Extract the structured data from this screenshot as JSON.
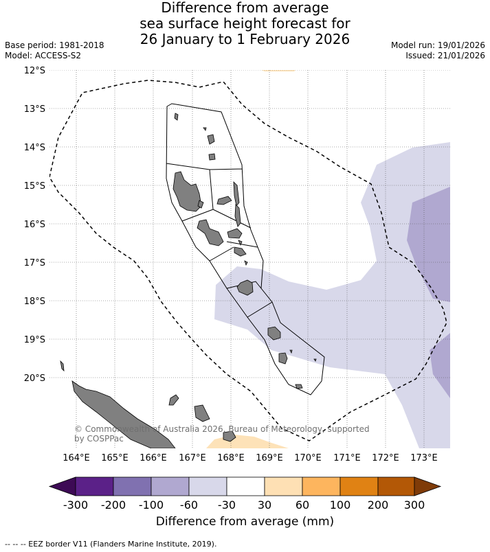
{
  "title": {
    "line1": "Difference from average",
    "line2": "sea surface height forecast for",
    "line3": "26 January to 1 February 2026"
  },
  "meta_left": {
    "base_period": "Base period: 1981-2018",
    "model": "Model: ACCESS-S2"
  },
  "meta_right": {
    "model_run": "Model run: 19/01/2026",
    "issued": "Issued: 21/01/2026"
  },
  "map": {
    "lat_labels": [
      "12°S",
      "13°S",
      "14°S",
      "15°S",
      "16°S",
      "17°S",
      "18°S",
      "19°S",
      "20°S"
    ],
    "lon_labels": [
      "164°E",
      "165°E",
      "166°E",
      "167°E",
      "168°E",
      "169°E",
      "170°E",
      "171°E",
      "172°E",
      "173°E"
    ],
    "copyright_line1": "© Commonwealth of Australia 2026, Bureau of Meteorology, supported",
    "copyright_line2": "by COSPPac",
    "colors": {
      "land": "#808080",
      "light_purple": "#d8d8ea",
      "mid_purple": "#b0a8d0",
      "light_orange": "#fde2b8"
    }
  },
  "colorbar": {
    "tick_labels": [
      "-300",
      "-200",
      "-100",
      "-60",
      "-30",
      "30",
      "60",
      "100",
      "200",
      "300"
    ],
    "colors": [
      "#3d0a55",
      "#5b2188",
      "#8071b0",
      "#b0a8d0",
      "#d8d8ea",
      "#ffffff",
      "#fee0b4",
      "#fdb55e",
      "#e08214",
      "#b35806",
      "#7f3b08"
    ],
    "title": "Difference from average (mm)"
  },
  "footer": "--  --  -- EEZ border V11 (Flanders Marine Institute, 2019)."
}
